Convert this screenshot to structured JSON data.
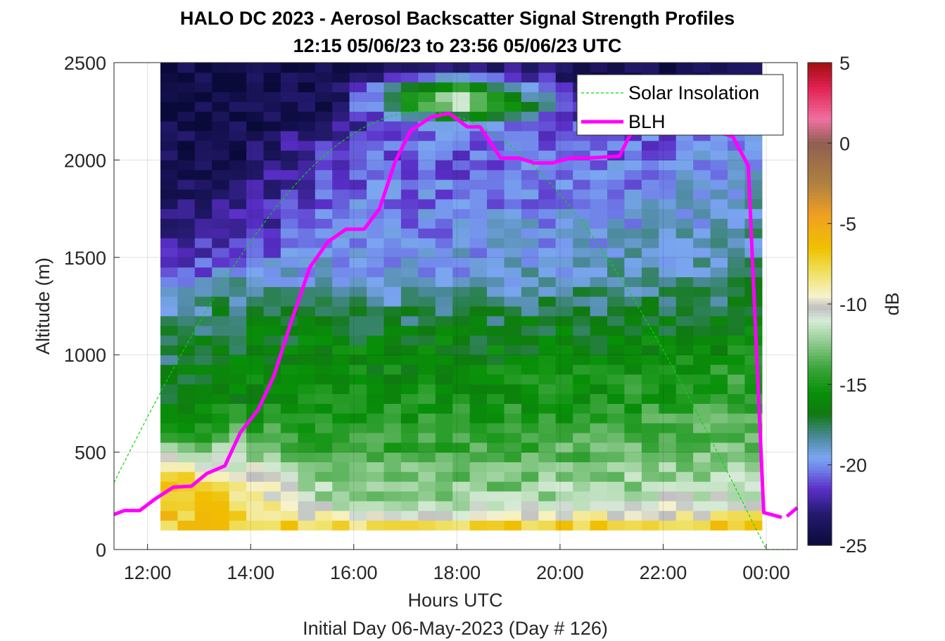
{
  "title_line1": "HALO DC 2023 - Aerosol Backscatter Signal Strength Profiles",
  "title_line2": "12:15 05/06/23 to 23:56 05/06/23  UTC",
  "xlabel": "Hours UTC",
  "xlabel2": "Initial Day 06-May-2023 (Day # 126)",
  "ylabel": "Altitude (m)",
  "colorbar_label": "dB",
  "legend": {
    "solar": "Solar Insolation",
    "blh": "BLH"
  },
  "colors": {
    "blh": "#ff00ff",
    "solar": "#00dd00",
    "background": "#ffffff",
    "gap_marker": "#b0b0b0"
  },
  "chart_data": {
    "type": "heatmap",
    "title": "HALO DC 2023 - Aerosol Backscatter Signal Strength Profiles",
    "subtitle": "12:15 05/06/23 to 23:56 05/06/23  UTC",
    "xlabel": "Hours UTC",
    "ylabel": "Altitude (m)",
    "colorbar_label": "dB",
    "xlim_hours": [
      11.35,
      24.6
    ],
    "ylim": [
      0,
      2500
    ],
    "clim": [
      -25,
      5
    ],
    "x_ticks": [
      {
        "hour": 12,
        "label": "12:00"
      },
      {
        "hour": 14,
        "label": "14:00"
      },
      {
        "hour": 16,
        "label": "16:00"
      },
      {
        "hour": 18,
        "label": "18:00"
      },
      {
        "hour": 20,
        "label": "20:00"
      },
      {
        "hour": 22,
        "label": "22:00"
      },
      {
        "hour": 24,
        "label": "00:00"
      }
    ],
    "y_ticks": [
      0,
      500,
      1000,
      1500,
      2000,
      2500
    ],
    "colorbar_ticks": [
      5,
      0,
      -5,
      -10,
      -15,
      -20,
      -25
    ],
    "colormap": [
      {
        "v": -25,
        "c": "#0a0a3a"
      },
      {
        "v": -23,
        "c": "#241a6e"
      },
      {
        "v": -21.5,
        "c": "#5a2ec8"
      },
      {
        "v": -20.3,
        "c": "#6f7ee8"
      },
      {
        "v": -19.5,
        "c": "#7aa6f0"
      },
      {
        "v": -18.3,
        "c": "#4e8aa0"
      },
      {
        "v": -16.8,
        "c": "#0f7a10"
      },
      {
        "v": -15.5,
        "c": "#089008"
      },
      {
        "v": -14,
        "c": "#3aa43a"
      },
      {
        "v": -12.5,
        "c": "#88c888"
      },
      {
        "v": -11,
        "c": "#d8ecd8"
      },
      {
        "v": -10.2,
        "c": "#c0c0c0"
      },
      {
        "v": -9.5,
        "c": "#f7f3d0"
      },
      {
        "v": -8,
        "c": "#f0e060"
      },
      {
        "v": -6.5,
        "c": "#f0c000"
      },
      {
        "v": -4.5,
        "c": "#f0a020"
      },
      {
        "v": -2.5,
        "c": "#b08040"
      },
      {
        "v": 0,
        "c": "#906050"
      },
      {
        "v": 1.5,
        "c": "#f070a0"
      },
      {
        "v": 3.5,
        "c": "#e02050"
      },
      {
        "v": 5,
        "c": "#a01010"
      }
    ],
    "grid": {
      "time_start_hour": 12.25,
      "time_step_hours": 0.3333,
      "alt_start_m": 100,
      "alt_step_m": 50,
      "alt_end_m": 2500,
      "profile_sets": {
        "early": {
          "z": [
            100,
            200,
            300,
            400,
            500,
            600,
            700,
            800,
            1000,
            1200,
            1350,
            1500,
            1800,
            2000,
            2300,
            2500
          ],
          "v": [
            -7,
            -6.5,
            -6.5,
            -7.5,
            -11.5,
            -15.5,
            -16.5,
            -17,
            -17.5,
            -18.5,
            -20.5,
            -22.5,
            -23.5,
            -24,
            -24.5,
            -24.5
          ]
        },
        "late_morning": {
          "z": [
            100,
            200,
            300,
            400,
            500,
            600,
            700,
            800,
            1000,
            1200,
            1350,
            1500,
            1700,
            2000,
            2300,
            2500
          ],
          "v": [
            -7,
            -7.5,
            -8.5,
            -10,
            -12,
            -13.5,
            -15,
            -16,
            -16.5,
            -17,
            -18.5,
            -20.5,
            -22.5,
            -24,
            -24.5,
            -24.5
          ]
        },
        "midday": {
          "z": [
            100,
            200,
            300,
            450,
            600,
            750,
            900,
            1100,
            1300,
            1450,
            1600,
            1800,
            2000,
            2150,
            2300,
            2500
          ],
          "v": [
            -7,
            -11,
            -12.5,
            -13.5,
            -14.5,
            -15.2,
            -15.8,
            -16.5,
            -18.5,
            -19.5,
            -20,
            -20.5,
            -21,
            -22,
            -24,
            -24.5
          ]
        },
        "afternoon": {
          "z": [
            100,
            200,
            300,
            450,
            600,
            750,
            900,
            1100,
            1300,
            1450,
            1600,
            1800,
            2000,
            2200,
            2300,
            2500
          ],
          "v": [
            -6.5,
            -11,
            -12.5,
            -13.5,
            -14.5,
            -15,
            -15.8,
            -16.5,
            -18.5,
            -19.5,
            -19.8,
            -20.2,
            -20.8,
            -19,
            -8,
            -24
          ]
        },
        "evening": {
          "z": [
            100,
            200,
            300,
            450,
            600,
            750,
            900,
            1100,
            1300,
            1450,
            1600,
            1800,
            2000,
            2200,
            2350,
            2500
          ],
          "v": [
            -6,
            -11,
            -12,
            -13,
            -14,
            -15,
            -15.5,
            -16.5,
            -18,
            -19,
            -19.5,
            -20,
            -20.5,
            -21.5,
            -23.5,
            -24.5
          ]
        },
        "night": {
          "z": [
            100,
            200,
            300,
            450,
            600,
            750,
            900,
            1100,
            1300,
            1450,
            1600,
            1800,
            2000,
            2200,
            2350,
            2500
          ],
          "v": [
            -6.5,
            -9.5,
            -11.5,
            -12.5,
            -13.5,
            -14,
            -14.5,
            -16,
            -17.5,
            -18,
            -18.5,
            -19,
            -19.5,
            -20.5,
            -22.5,
            -24
          ]
        }
      }
    },
    "blh": [
      {
        "h": 11.35,
        "m": 180
      },
      {
        "h": 11.55,
        "m": 200
      },
      {
        "h": 11.85,
        "m": 200
      },
      {
        "h": 12.15,
        "m": 260
      },
      {
        "h": 12.5,
        "m": 320
      },
      {
        "h": 12.85,
        "m": 325
      },
      {
        "h": 13.15,
        "m": 390
      },
      {
        "h": 13.5,
        "m": 430
      },
      {
        "h": 13.8,
        "m": 600
      },
      {
        "h": 14.15,
        "m": 720
      },
      {
        "h": 14.45,
        "m": 890
      },
      {
        "h": 14.8,
        "m": 1180
      },
      {
        "h": 15.15,
        "m": 1450
      },
      {
        "h": 15.5,
        "m": 1580
      },
      {
        "h": 15.85,
        "m": 1645
      },
      {
        "h": 16.2,
        "m": 1645
      },
      {
        "h": 16.5,
        "m": 1750
      },
      {
        "h": 16.8,
        "m": 1990
      },
      {
        "h": 17.1,
        "m": 2150
      },
      {
        "h": 17.5,
        "m": 2220
      },
      {
        "h": 17.85,
        "m": 2240
      },
      {
        "h": 18.2,
        "m": 2170
      },
      {
        "h": 18.45,
        "m": 2170
      },
      {
        "h": 18.85,
        "m": 2010
      },
      {
        "h": 19.2,
        "m": 2010
      },
      {
        "h": 19.5,
        "m": 1985
      },
      {
        "h": 19.85,
        "m": 1985
      },
      {
        "h": 20.2,
        "m": 2010
      },
      {
        "h": 20.55,
        "m": 2010
      },
      {
        "h": 20.85,
        "m": 2015
      },
      {
        "h": 21.15,
        "m": 2020
      },
      {
        "h": 21.4,
        "m": 2150
      },
      {
        "h": 21.7,
        "m": 2155
      },
      {
        "h": 22.0,
        "m": 2150
      },
      {
        "h": 22.35,
        "m": 2150
      },
      {
        "h": 22.65,
        "m": 2150
      },
      {
        "h": 23.0,
        "m": 2150
      },
      {
        "h": 23.35,
        "m": 2120
      },
      {
        "h": 23.65,
        "m": 1970
      },
      {
        "h": 23.95,
        "m": 190
      },
      {
        "h": 24.3,
        "m": 165
      }
    ],
    "blh_tail": [
      {
        "h": 24.4,
        "m": 170
      },
      {
        "h": 24.6,
        "m": 215
      }
    ],
    "solar": {
      "peak_hour": 17.35,
      "peak_m": 2250,
      "zero_hour": 24.0,
      "start_hour": 11.35,
      "start_m": 530
    }
  }
}
